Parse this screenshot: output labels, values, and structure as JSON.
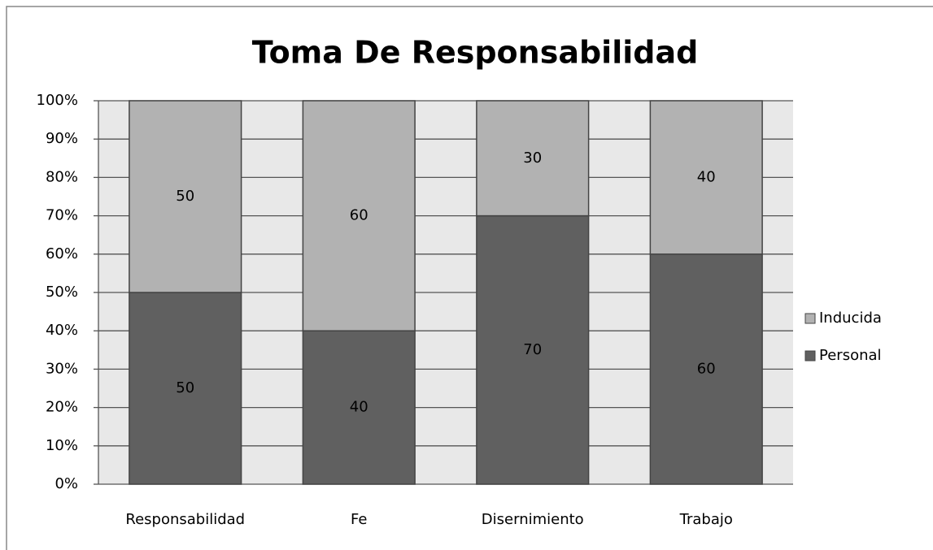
{
  "chart_data": {
    "type": "stacked_bar",
    "title": "Toma De Responsabilidad",
    "categories": [
      "Responsabilidad",
      "Fe",
      "Disernimiento",
      "Trabajo"
    ],
    "series": [
      {
        "name": "Personal",
        "color": "#606060",
        "values": [
          50,
          40,
          70,
          60
        ]
      },
      {
        "name": "Inducida",
        "color": "#b2b2b2",
        "values": [
          50,
          60,
          30,
          40
        ]
      }
    ],
    "ylim": [
      0,
      100
    ],
    "yticks": [
      {
        "value": 0,
        "label": "0%"
      },
      {
        "value": 10,
        "label": "10%"
      },
      {
        "value": 20,
        "label": "20%"
      },
      {
        "value": 30,
        "label": "30%"
      },
      {
        "value": 40,
        "label": "40%"
      },
      {
        "value": 50,
        "label": "50%"
      },
      {
        "value": 60,
        "label": "60%"
      },
      {
        "value": 70,
        "label": "70%"
      },
      {
        "value": 80,
        "label": "80%"
      },
      {
        "value": 90,
        "label": "90%"
      },
      {
        "value": 100,
        "label": "100%"
      }
    ],
    "grid": true,
    "legend": "right"
  }
}
